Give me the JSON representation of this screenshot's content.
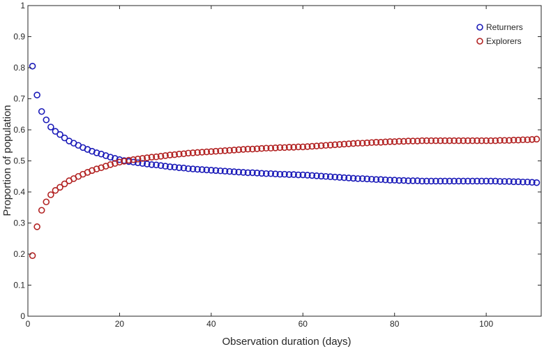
{
  "chart_data": {
    "type": "scatter",
    "title": "",
    "xlabel": "Observation duration (days)",
    "ylabel": "Proportion of population",
    "xlim": [
      0,
      112
    ],
    "ylim": [
      0,
      1
    ],
    "xticks": [
      0,
      20,
      40,
      60,
      80,
      100
    ],
    "yticks": [
      0,
      0.1,
      0.2,
      0.3,
      0.4,
      0.5,
      0.6,
      0.7,
      0.8,
      0.9,
      1
    ],
    "xtick_labels": [
      "0",
      "20",
      "40",
      "60",
      "80",
      "100"
    ],
    "ytick_labels": [
      "0",
      "0.1",
      "0.2",
      "0.3",
      "0.4",
      "0.5",
      "0.6",
      "0.7",
      "0.8",
      "0.9",
      "1"
    ],
    "grid": false,
    "legend_position": "top-right",
    "marker": "open-circle",
    "x": [
      1,
      2,
      3,
      4,
      5,
      6,
      7,
      8,
      9,
      10,
      11,
      12,
      13,
      14,
      15,
      16,
      17,
      18,
      19,
      20,
      21,
      22,
      23,
      24,
      25,
      26,
      27,
      28,
      29,
      30,
      31,
      32,
      33,
      34,
      35,
      36,
      37,
      38,
      39,
      40,
      41,
      42,
      43,
      44,
      45,
      46,
      47,
      48,
      49,
      50,
      51,
      52,
      53,
      54,
      55,
      56,
      57,
      58,
      59,
      60,
      61,
      62,
      63,
      64,
      65,
      66,
      67,
      68,
      69,
      70,
      71,
      72,
      73,
      74,
      75,
      76,
      77,
      78,
      79,
      80,
      81,
      82,
      83,
      84,
      85,
      86,
      87,
      88,
      89,
      90,
      91,
      92,
      93,
      94,
      95,
      96,
      97,
      98,
      99,
      100,
      101,
      102,
      103,
      104,
      105,
      106,
      107,
      108,
      109,
      110,
      111
    ],
    "series": [
      {
        "name": "Returners",
        "color": "#1a1ab8",
        "values": [
          0.805,
          0.712,
          0.659,
          0.632,
          0.609,
          0.595,
          0.585,
          0.574,
          0.564,
          0.557,
          0.55,
          0.543,
          0.537,
          0.531,
          0.526,
          0.522,
          0.517,
          0.512,
          0.508,
          0.504,
          0.501,
          0.498,
          0.496,
          0.494,
          0.492,
          0.49,
          0.488,
          0.487,
          0.485,
          0.483,
          0.481,
          0.48,
          0.478,
          0.477,
          0.475,
          0.474,
          0.473,
          0.472,
          0.471,
          0.47,
          0.469,
          0.468,
          0.467,
          0.466,
          0.465,
          0.464,
          0.463,
          0.462,
          0.462,
          0.461,
          0.46,
          0.459,
          0.459,
          0.458,
          0.457,
          0.457,
          0.456,
          0.456,
          0.455,
          0.455,
          0.454,
          0.453,
          0.452,
          0.451,
          0.45,
          0.449,
          0.448,
          0.447,
          0.446,
          0.445,
          0.444,
          0.443,
          0.443,
          0.442,
          0.441,
          0.44,
          0.44,
          0.439,
          0.438,
          0.438,
          0.437,
          0.437,
          0.436,
          0.436,
          0.436,
          0.435,
          0.435,
          0.435,
          0.435,
          0.435,
          0.435,
          0.435,
          0.435,
          0.435,
          0.435,
          0.435,
          0.435,
          0.435,
          0.435,
          0.435,
          0.435,
          0.435,
          0.434,
          0.434,
          0.434,
          0.433,
          0.433,
          0.432,
          0.432,
          0.431,
          0.43
        ]
      },
      {
        "name": "Explorers",
        "color": "#b22222",
        "values": [
          0.195,
          0.288,
          0.341,
          0.368,
          0.391,
          0.405,
          0.415,
          0.426,
          0.436,
          0.443,
          0.45,
          0.457,
          0.463,
          0.469,
          0.474,
          0.478,
          0.483,
          0.488,
          0.492,
          0.496,
          0.499,
          0.502,
          0.504,
          0.506,
          0.508,
          0.51,
          0.512,
          0.513,
          0.515,
          0.517,
          0.519,
          0.52,
          0.522,
          0.523,
          0.525,
          0.526,
          0.527,
          0.528,
          0.529,
          0.53,
          0.531,
          0.532,
          0.533,
          0.534,
          0.535,
          0.536,
          0.537,
          0.538,
          0.538,
          0.539,
          0.54,
          0.541,
          0.541,
          0.542,
          0.543,
          0.543,
          0.544,
          0.544,
          0.545,
          0.545,
          0.546,
          0.547,
          0.548,
          0.549,
          0.55,
          0.551,
          0.552,
          0.553,
          0.554,
          0.555,
          0.556,
          0.557,
          0.557,
          0.558,
          0.559,
          0.56,
          0.56,
          0.561,
          0.562,
          0.562,
          0.563,
          0.563,
          0.564,
          0.564,
          0.564,
          0.565,
          0.565,
          0.565,
          0.565,
          0.565,
          0.565,
          0.565,
          0.565,
          0.565,
          0.565,
          0.565,
          0.565,
          0.565,
          0.565,
          0.565,
          0.565,
          0.565,
          0.566,
          0.566,
          0.566,
          0.567,
          0.567,
          0.568,
          0.568,
          0.569,
          0.57
        ]
      }
    ]
  }
}
